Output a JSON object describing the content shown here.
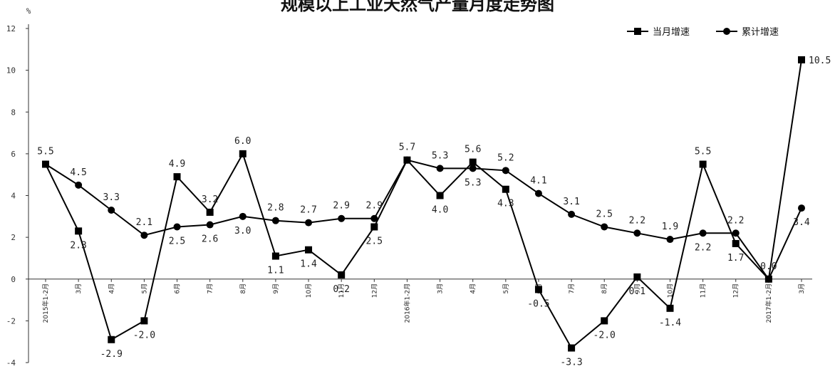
{
  "chart_data": {
    "type": "line",
    "title": "规模以上工业天然气产量月度走势图",
    "ylabel": "%",
    "xlabel": "",
    "ylim": [
      -4,
      12
    ],
    "yticks": [
      -4,
      -2,
      0,
      2,
      4,
      6,
      8,
      10,
      12
    ],
    "grid": false,
    "legend_position": "top-right",
    "categories": [
      "2015年1-2月",
      "3月",
      "4月",
      "5月",
      "6月",
      "7月",
      "8月",
      "9月",
      "10月",
      "11月",
      "12月",
      "2016年1-2月",
      "3月",
      "4月",
      "5月",
      "6月",
      "7月",
      "8月",
      "9月",
      "10月",
      "11月",
      "12月",
      "2017年1-2月",
      "3月"
    ],
    "series": [
      {
        "name": "当月增速",
        "marker": "square",
        "color": "#000000",
        "values": [
          5.5,
          2.3,
          -2.9,
          -2.0,
          4.9,
          3.2,
          6.0,
          1.1,
          1.4,
          0.2,
          2.5,
          5.7,
          4.0,
          5.6,
          4.3,
          -0.5,
          -3.3,
          -2.0,
          0.1,
          -1.4,
          5.5,
          1.7,
          0.0,
          10.5
        ],
        "labels": [
          "5.5",
          "2.3",
          "-2.9",
          "-2.0",
          "4.9",
          "3.2",
          "6.0",
          "1.1",
          "1.4",
          "0.2",
          "2.5",
          "5.7",
          "4.0",
          "5.6",
          "4.3",
          "-0.5",
          "-3.3",
          "-2.0",
          "0.1",
          "-1.4",
          "5.5",
          "1.7",
          "0.0",
          "10.5"
        ]
      },
      {
        "name": "累计增速",
        "marker": "circle",
        "color": "#000000",
        "values": [
          5.5,
          4.5,
          3.3,
          2.1,
          2.5,
          2.6,
          3.0,
          2.8,
          2.7,
          2.9,
          2.9,
          5.7,
          5.3,
          5.3,
          5.2,
          4.1,
          3.1,
          2.5,
          2.2,
          1.9,
          2.2,
          2.2,
          0.0,
          3.4
        ],
        "labels": [
          "",
          "4.5",
          "3.3",
          "2.1",
          "2.5",
          "2.6",
          "3.0",
          "2.8",
          "2.7",
          "2.9",
          "2.9",
          "",
          "5.3",
          "5.3",
          "5.2",
          "4.1",
          "3.1",
          "2.5",
          "2.2",
          "1.9",
          "2.2",
          "2.2",
          "",
          "3.4"
        ]
      }
    ]
  }
}
